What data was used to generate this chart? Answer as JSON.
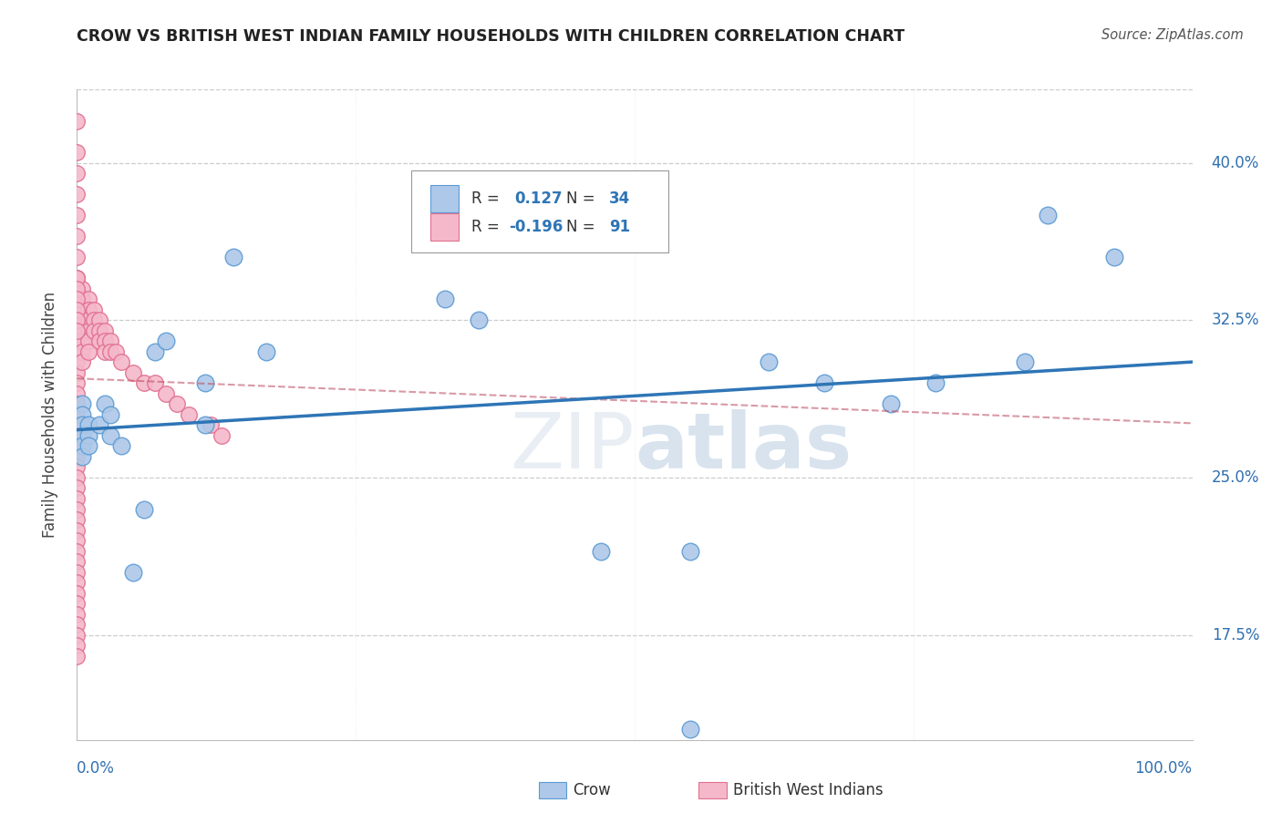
{
  "title": "CROW VS BRITISH WEST INDIAN FAMILY HOUSEHOLDS WITH CHILDREN CORRELATION CHART",
  "source": "Source: ZipAtlas.com",
  "ylabel": "Family Households with Children",
  "watermark": "ZIPatlas",
  "crow_R": 0.127,
  "crow_N": 34,
  "bwi_R": -0.196,
  "bwi_N": 91,
  "xlim": [
    0.0,
    1.0
  ],
  "ylim": [
    0.125,
    0.435
  ],
  "crow_color": "#adc8e8",
  "crow_edge_color": "#5b9bd5",
  "bwi_color": "#f5b8ca",
  "bwi_edge_color": "#e07090",
  "trendline_crow_color": "#2e75b6",
  "trendline_bwi_color": "#c0556a",
  "grid_color": "#cccccc",
  "crow_x": [
    0.14,
    0.005,
    0.005,
    0.005,
    0.005,
    0.005,
    0.005,
    0.01,
    0.01,
    0.01,
    0.02,
    0.025,
    0.03,
    0.03,
    0.04,
    0.05,
    0.06,
    0.07,
    0.08,
    0.115,
    0.115,
    0.17,
    0.33,
    0.36,
    0.47,
    0.55,
    0.62,
    0.67,
    0.73,
    0.77,
    0.85,
    0.87,
    0.93,
    0.55
  ],
  "crow_y": [
    0.355,
    0.285,
    0.28,
    0.275,
    0.27,
    0.265,
    0.26,
    0.275,
    0.27,
    0.265,
    0.275,
    0.285,
    0.28,
    0.27,
    0.265,
    0.205,
    0.235,
    0.31,
    0.315,
    0.295,
    0.275,
    0.31,
    0.335,
    0.325,
    0.215,
    0.215,
    0.305,
    0.295,
    0.285,
    0.295,
    0.305,
    0.375,
    0.355,
    0.13
  ],
  "bwi_x": [
    0.0,
    0.0,
    0.0,
    0.0,
    0.0,
    0.0,
    0.0,
    0.0,
    0.0,
    0.0,
    0.0,
    0.0,
    0.0,
    0.0,
    0.0,
    0.0,
    0.0,
    0.0,
    0.0,
    0.0,
    0.0,
    0.0,
    0.0,
    0.0,
    0.0,
    0.0,
    0.0,
    0.0,
    0.0,
    0.0,
    0.0,
    0.0,
    0.0,
    0.0,
    0.0,
    0.0,
    0.0,
    0.0,
    0.0,
    0.0,
    0.0,
    0.0,
    0.0,
    0.0,
    0.0,
    0.0,
    0.0,
    0.0,
    0.0,
    0.0,
    0.005,
    0.005,
    0.005,
    0.005,
    0.005,
    0.005,
    0.005,
    0.005,
    0.01,
    0.01,
    0.01,
    0.01,
    0.01,
    0.01,
    0.015,
    0.015,
    0.015,
    0.02,
    0.02,
    0.02,
    0.025,
    0.025,
    0.025,
    0.03,
    0.03,
    0.035,
    0.04,
    0.05,
    0.06,
    0.07,
    0.08,
    0.09,
    0.1,
    0.12,
    0.13,
    0.0,
    0.0,
    0.0,
    0.0,
    0.0,
    0.0
  ],
  "bwi_y": [
    0.42,
    0.405,
    0.395,
    0.385,
    0.375,
    0.365,
    0.355,
    0.345,
    0.335,
    0.33,
    0.325,
    0.32,
    0.315,
    0.31,
    0.305,
    0.3,
    0.295,
    0.29,
    0.285,
    0.28,
    0.275,
    0.27,
    0.265,
    0.26,
    0.255,
    0.25,
    0.245,
    0.24,
    0.235,
    0.23,
    0.225,
    0.22,
    0.215,
    0.21,
    0.205,
    0.2,
    0.195,
    0.19,
    0.185,
    0.18,
    0.175,
    0.17,
    0.165,
    0.345,
    0.34,
    0.335,
    0.33,
    0.325,
    0.32,
    0.315,
    0.34,
    0.335,
    0.33,
    0.325,
    0.32,
    0.315,
    0.31,
    0.305,
    0.335,
    0.33,
    0.325,
    0.32,
    0.315,
    0.31,
    0.33,
    0.325,
    0.32,
    0.325,
    0.32,
    0.315,
    0.32,
    0.315,
    0.31,
    0.315,
    0.31,
    0.31,
    0.305,
    0.3,
    0.295,
    0.295,
    0.29,
    0.285,
    0.28,
    0.275,
    0.27,
    0.345,
    0.34,
    0.335,
    0.33,
    0.325,
    0.32
  ]
}
